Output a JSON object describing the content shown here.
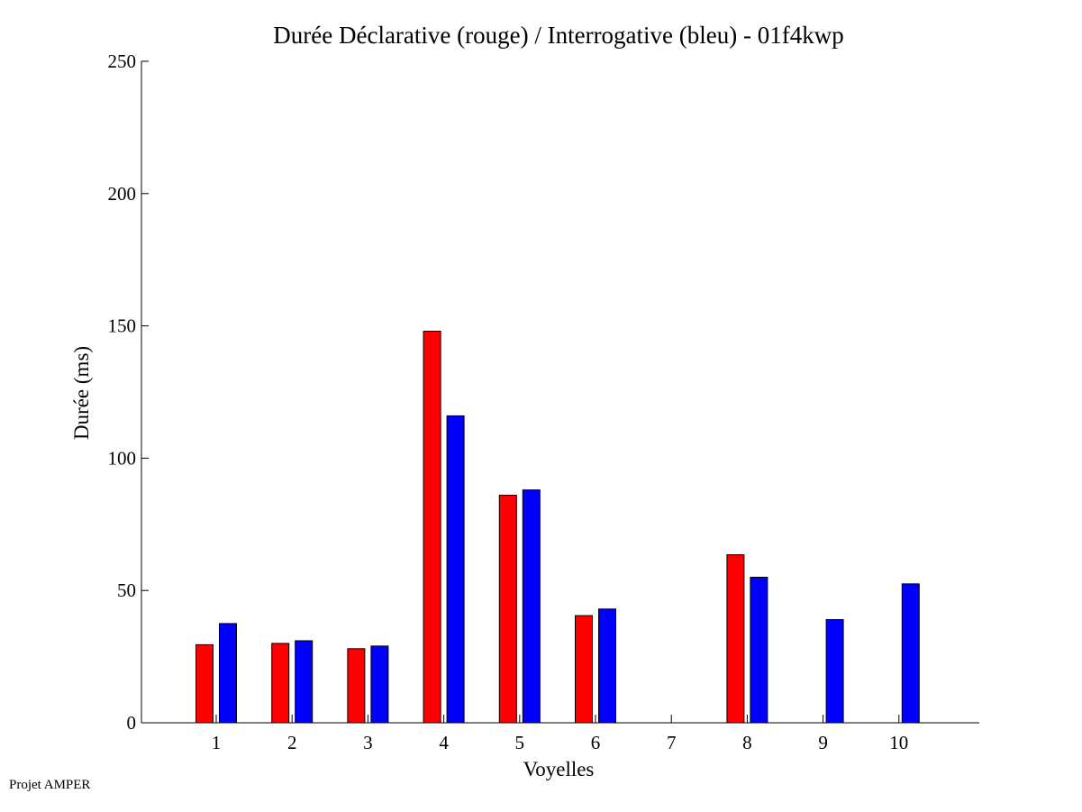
{
  "footer": "Projet AMPER",
  "chart_data": {
    "type": "bar",
    "title": "Durée Déclarative (rouge) / Interrogative (bleu) - 01f4kwp",
    "xlabel": "Voyelles",
    "ylabel": "Durée (ms)",
    "ylim": [
      0,
      250
    ],
    "yticks": [
      0,
      50,
      100,
      150,
      200,
      250
    ],
    "categories": [
      "1",
      "2",
      "3",
      "4",
      "5",
      "6",
      "7",
      "8",
      "9",
      "10"
    ],
    "grid": false,
    "series": [
      {
        "color": "#ff0000",
        "values": [
          29.5,
          30,
          28,
          148,
          86,
          40.5,
          0,
          63.5,
          0,
          0
        ]
      },
      {
        "color": "#0000ff",
        "values": [
          37.5,
          31,
          29,
          116,
          88,
          43,
          0,
          55,
          39,
          52.5
        ]
      }
    ]
  }
}
